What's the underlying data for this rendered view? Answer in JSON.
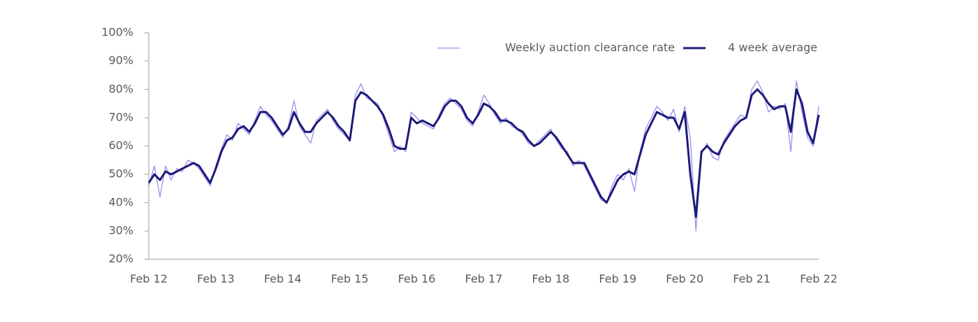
{
  "chart_data": {
    "type": "line",
    "categories": [
      "Feb 12",
      null,
      null,
      null,
      null,
      null,
      null,
      null,
      null,
      null,
      null,
      null,
      "Feb 13",
      null,
      null,
      null,
      null,
      null,
      null,
      null,
      null,
      null,
      null,
      null,
      "Feb 14",
      null,
      null,
      null,
      null,
      null,
      null,
      null,
      null,
      null,
      null,
      null,
      "Feb 15",
      null,
      null,
      null,
      null,
      null,
      null,
      null,
      null,
      null,
      null,
      null,
      "Feb 16",
      null,
      null,
      null,
      null,
      null,
      null,
      null,
      null,
      null,
      null,
      null,
      "Feb 17",
      null,
      null,
      null,
      null,
      null,
      null,
      null,
      null,
      null,
      null,
      null,
      "Feb 18",
      null,
      null,
      null,
      null,
      null,
      null,
      null,
      null,
      null,
      null,
      null,
      "Feb 19",
      null,
      null,
      null,
      null,
      null,
      null,
      null,
      null,
      null,
      null,
      null,
      "Feb 20",
      null,
      null,
      null,
      null,
      null,
      null,
      null,
      null,
      null,
      null,
      null,
      "Feb 21",
      null,
      null,
      null,
      null,
      null,
      null,
      null,
      null,
      null,
      null,
      null,
      "Feb 22"
    ],
    "series": [
      {
        "name": "Weekly auction clearance rate",
        "color": "#9d8cf0",
        "width": 1.3,
        "values": [
          46,
          53,
          42,
          53,
          48,
          52,
          51,
          55,
          54,
          52,
          49,
          46,
          53,
          59,
          64,
          62,
          68,
          66,
          64,
          69,
          74,
          71,
          69,
          66,
          63,
          67,
          76,
          67,
          64,
          61,
          69,
          71,
          73,
          69,
          66,
          64,
          62,
          78,
          82,
          77,
          76,
          75,
          70,
          64,
          58,
          60,
          58,
          72,
          70,
          68,
          67,
          66,
          71,
          75,
          77,
          75,
          73,
          69,
          67,
          72,
          78,
          75,
          71,
          68,
          70,
          67,
          66,
          64,
          61,
          60,
          62,
          64,
          66,
          62,
          59,
          58,
          53,
          55,
          53,
          49,
          45,
          41,
          40,
          46,
          50,
          48,
          52,
          44,
          58,
          66,
          70,
          74,
          72,
          69,
          73,
          65,
          74,
          63,
          30,
          57,
          61,
          56,
          55,
          62,
          65,
          68,
          71,
          70,
          80,
          83,
          79,
          72,
          74,
          73,
          75,
          58,
          83,
          72,
          63,
          60,
          74
        ]
      },
      {
        "name": "4 week average",
        "color": "#1b1b78",
        "width": 3,
        "values": [
          47,
          50,
          48,
          51,
          50,
          51,
          52,
          53,
          54,
          53,
          50,
          47,
          52,
          58,
          62,
          63,
          66,
          67,
          65,
          68,
          72,
          72,
          70,
          67,
          64,
          66,
          72,
          68,
          65,
          65,
          68,
          70,
          72,
          70,
          67,
          65,
          62,
          76,
          79,
          78,
          76,
          74,
          71,
          66,
          60,
          59,
          59,
          70,
          68,
          69,
          68,
          67,
          70,
          74,
          76,
          76,
          74,
          70,
          68,
          71,
          75,
          74,
          72,
          69,
          69,
          68,
          66,
          65,
          62,
          60,
          61,
          63,
          65,
          63,
          60,
          57,
          54,
          54,
          54,
          50,
          46,
          42,
          40,
          44,
          48,
          50,
          51,
          50,
          57,
          64,
          68,
          72,
          71,
          70,
          70,
          66,
          72,
          50,
          35,
          58,
          60,
          58,
          57,
          61,
          64,
          67,
          69,
          70,
          78,
          80,
          78,
          75,
          73,
          74,
          74,
          65,
          80,
          75,
          65,
          61,
          71
        ]
      }
    ],
    "ylim": [
      20,
      100
    ],
    "yticks": [
      {
        "value": 20,
        "label": "20%"
      },
      {
        "value": 30,
        "label": "30%"
      },
      {
        "value": 40,
        "label": "40%"
      },
      {
        "value": 50,
        "label": "50%"
      },
      {
        "value": 60,
        "label": "60%"
      },
      {
        "value": 70,
        "label": "70%"
      },
      {
        "value": 80,
        "label": "80%"
      },
      {
        "value": 90,
        "label": "90%"
      },
      {
        "value": 100,
        "label": "100%"
      }
    ],
    "grid": false,
    "legend": "top-right"
  }
}
